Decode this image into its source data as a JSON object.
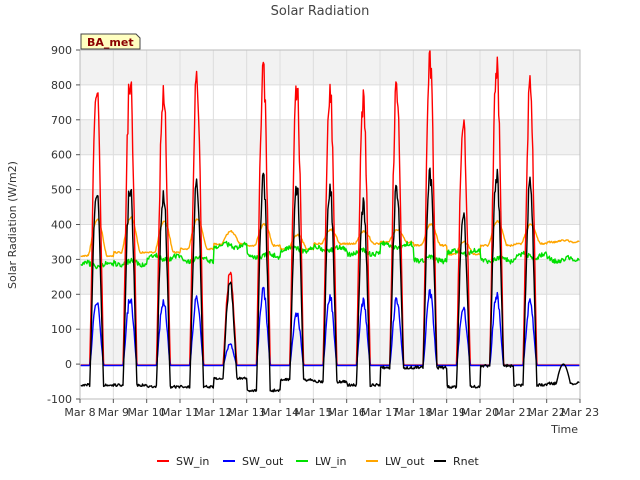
{
  "chart_data": {
    "type": "line",
    "title": "Solar Radiation",
    "xlabel": "Time",
    "ylabel": "Solar Radiation (W/m2)",
    "ylim": [
      -100,
      900
    ],
    "xlim_days": [
      "Mar 8",
      "Mar 23"
    ],
    "yticks": [
      -100,
      0,
      100,
      200,
      300,
      400,
      500,
      600,
      700,
      800,
      900
    ],
    "xticks": [
      "Mar 8",
      "Mar 9",
      "Mar 10",
      "Mar 11",
      "Mar 12",
      "Mar 13",
      "Mar 14",
      "Mar 15",
      "Mar 16",
      "Mar 17",
      "Mar 18",
      "Mar 19",
      "Mar 20",
      "Mar 21",
      "Mar 22",
      "Mar 23"
    ],
    "grid": true,
    "legend_position": "bottom",
    "site_label": "BA_met",
    "daily": {
      "days": [
        "Mar 8",
        "Mar 9",
        "Mar 10",
        "Mar 11",
        "Mar 12",
        "Mar 13",
        "Mar 14",
        "Mar 15",
        "Mar 16",
        "Mar 17",
        "Mar 18",
        "Mar 19",
        "Mar 20",
        "Mar 21",
        "Mar 22"
      ],
      "sw_in_peak": [
        805,
        815,
        790,
        810,
        260,
        825,
        800,
        780,
        745,
        800,
        860,
        680,
        870,
        790,
        0
      ],
      "sw_out_peak": [
        185,
        190,
        185,
        190,
        60,
        210,
        150,
        195,
        180,
        190,
        205,
        160,
        205,
        180,
        0
      ],
      "lw_in_level": [
        285,
        290,
        305,
        300,
        340,
        310,
        330,
        330,
        320,
        340,
        300,
        320,
        300,
        310,
        300
      ],
      "lw_out_night": [
        310,
        320,
        320,
        330,
        345,
        340,
        330,
        345,
        345,
        350,
        340,
        315,
        340,
        345,
        350
      ],
      "lw_out_peak": [
        415,
        420,
        410,
        415,
        380,
        400,
        370,
        385,
        380,
        385,
        400,
        350,
        410,
        400,
        355
      ],
      "rnet_peak": [
        500,
        505,
        490,
        510,
        230,
        520,
        510,
        500,
        450,
        505,
        535,
        420,
        550,
        510,
        0
      ],
      "rnet_night": [
        -60,
        -60,
        -65,
        -65,
        -40,
        -75,
        -45,
        -50,
        -60,
        -10,
        -10,
        -65,
        -5,
        -60,
        -55
      ]
    },
    "series": [
      {
        "name": "SW_in",
        "color": "#ff0000"
      },
      {
        "name": "SW_out",
        "color": "#0000ff"
      },
      {
        "name": "LW_in",
        "color": "#00e000"
      },
      {
        "name": "LW_out",
        "color": "#ffa500"
      },
      {
        "name": "Rnet",
        "color": "#000000"
      }
    ]
  }
}
